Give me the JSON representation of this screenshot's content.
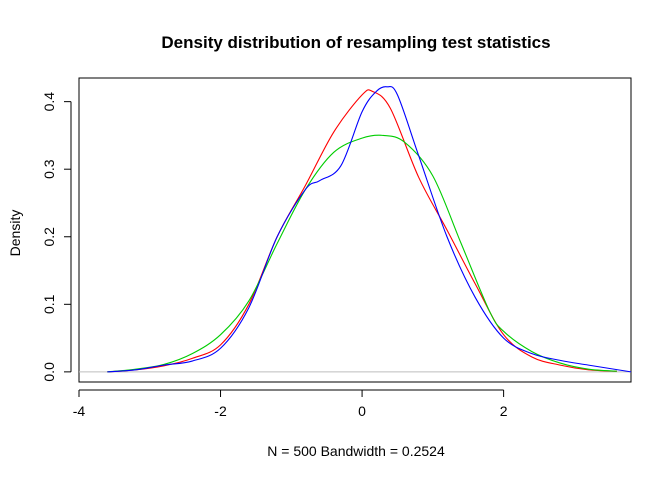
{
  "chart_data": {
    "type": "line",
    "title": "Density distribution of resampling test statistics",
    "xlabel": "N = 500   Bandwidth = 0.2524",
    "ylabel": "Density",
    "xlim": [
      -4.0,
      3.8
    ],
    "ylim": [
      -0.015,
      0.435
    ],
    "grid": false,
    "legend": "none",
    "x_ticks": [
      -4,
      -2,
      0,
      2
    ],
    "x_tick_labels": [
      "-4",
      "-2",
      "0",
      "2"
    ],
    "y_ticks": [
      0.0,
      0.1,
      0.2,
      0.3,
      0.4
    ],
    "y_tick_labels": [
      "0.0",
      "0.1",
      "0.2",
      "0.3",
      "0.4"
    ],
    "baseline": 0,
    "colors": {
      "baseline": "#bebebe",
      "frame": "#000000"
    },
    "series": [
      {
        "color": "#ff0000",
        "x": [
          -3.6,
          -3.2,
          -2.8,
          -2.4,
          -2.0,
          -1.6,
          -1.2,
          -0.8,
          -0.4,
          0.0,
          0.15,
          0.4,
          0.8,
          1.2,
          1.6,
          2.0,
          2.4,
          2.8,
          3.2,
          3.6
        ],
        "y": [
          0.0,
          0.003,
          0.009,
          0.02,
          0.04,
          0.1,
          0.2,
          0.276,
          0.355,
          0.41,
          0.415,
          0.39,
          0.288,
          0.21,
          0.13,
          0.055,
          0.022,
          0.01,
          0.003,
          0.001
        ]
      },
      {
        "color": "#00cd00",
        "x": [
          -3.6,
          -3.2,
          -2.8,
          -2.4,
          -2.0,
          -1.6,
          -1.2,
          -0.8,
          -0.4,
          0.0,
          0.3,
          0.6,
          1.0,
          1.4,
          1.8,
          2.0,
          2.4,
          2.8,
          3.2,
          3.6
        ],
        "y": [
          0.0,
          0.004,
          0.011,
          0.027,
          0.055,
          0.105,
          0.19,
          0.27,
          0.325,
          0.346,
          0.35,
          0.34,
          0.29,
          0.19,
          0.09,
          0.06,
          0.03,
          0.013,
          0.004,
          0.001
        ]
      },
      {
        "color": "#0000ff",
        "x": [
          -3.6,
          -3.2,
          -2.8,
          -2.4,
          -2.0,
          -1.6,
          -1.2,
          -0.8,
          -0.6,
          -0.3,
          0.0,
          0.2,
          0.35,
          0.5,
          0.8,
          1.2,
          1.6,
          2.0,
          2.4,
          2.8,
          3.2,
          3.8
        ],
        "y": [
          0.0,
          0.003,
          0.01,
          0.016,
          0.035,
          0.095,
          0.2,
          0.27,
          0.283,
          0.305,
          0.385,
          0.415,
          0.422,
          0.41,
          0.32,
          0.2,
          0.11,
          0.05,
          0.027,
          0.017,
          0.01,
          0.0
        ]
      }
    ]
  }
}
